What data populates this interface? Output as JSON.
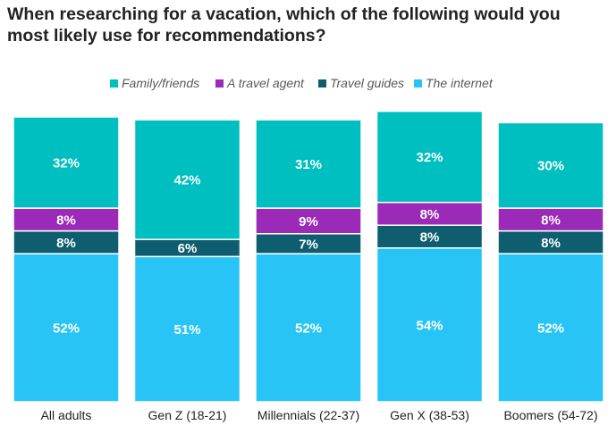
{
  "title": "When researching for a vacation, which of the following would you most likely use for recommendations?",
  "chart_data": {
    "type": "bar",
    "stacked": true,
    "categories": [
      "All adults",
      "Gen Z (18-21)",
      "Millennials (22-37)",
      "Gen X (38-53)",
      "Boomers (54-72)"
    ],
    "series": [
      {
        "name": "The internet",
        "color": "#29C4F6",
        "values": [
          52,
          51,
          52,
          54,
          52
        ],
        "labels": [
          "52%",
          "51%",
          "52%",
          "54%",
          "52%"
        ]
      },
      {
        "name": "Travel guides",
        "color": "#0E5E6F",
        "values": [
          8,
          6,
          7,
          8,
          8
        ],
        "labels": [
          "8%",
          "6%",
          "7%",
          "8%",
          "8%"
        ]
      },
      {
        "name": "A travel agent",
        "color": "#9B2AB8",
        "values": [
          8,
          0,
          9,
          8,
          8
        ],
        "labels": [
          "8%",
          "",
          "9%",
          "8%",
          "8%"
        ]
      },
      {
        "name": "Family/friends",
        "color": "#00BFC0",
        "values": [
          32,
          42,
          31,
          32,
          30
        ],
        "labels": [
          "32%",
          "42%",
          "31%",
          "32%",
          "30%"
        ]
      }
    ],
    "legend_order": [
      "Family/friends",
      "A travel agent",
      "Travel guides",
      "The internet"
    ],
    "legend_position": "top",
    "ylim": [
      0,
      100
    ],
    "xlabel": "",
    "ylabel": "",
    "grid": false
  }
}
